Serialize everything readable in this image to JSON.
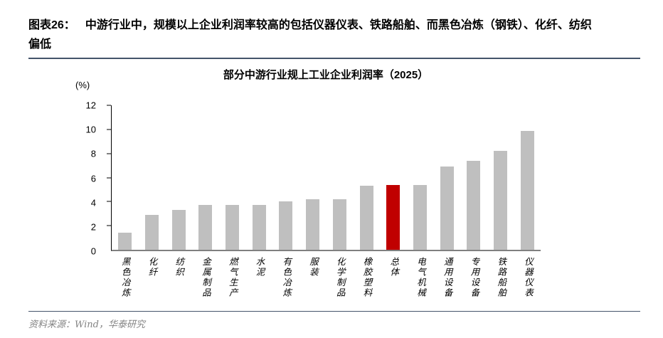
{
  "figure": {
    "caption_prefix": "图表26：",
    "caption_line1": "中游行业中，规模以上企业利润率较高的包括仪器仪表、铁路船舶、而黑色冶炼（钢铁）、化纤、纺织",
    "caption_line2": "偏低",
    "source": "资料来源：Wind，华泰研究"
  },
  "chart_data": {
    "type": "bar",
    "title": "部分中游行业规上工业企业利润率（2025）",
    "unit_label": "(%)",
    "categories": [
      "黑色冶炼",
      "化纤",
      "纺织",
      "金属制品",
      "燃气生产",
      "水泥",
      "有色冶炼",
      "服装",
      "化学制品",
      "橡胶塑料",
      "总体",
      "电气机械",
      "通用设备",
      "专用设备",
      "铁路船舶",
      "仪器仪表"
    ],
    "values": [
      1.4,
      2.9,
      3.3,
      3.7,
      3.7,
      3.7,
      4.0,
      4.2,
      4.2,
      5.3,
      5.4,
      5.4,
      6.9,
      7.4,
      8.2,
      9.9
    ],
    "highlight_category": "总体",
    "highlight_index": 10,
    "bar_color": "#bfbfbf",
    "highlight_color": "#c00000",
    "xlabel": "",
    "ylabel": "(%)",
    "ylim": [
      0,
      12
    ],
    "ytick_step": 2,
    "grid": false,
    "legend": false
  }
}
